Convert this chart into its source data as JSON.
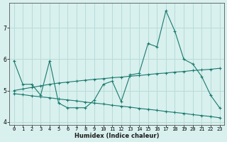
{
  "x": [
    0,
    1,
    2,
    3,
    4,
    5,
    6,
    7,
    8,
    9,
    10,
    11,
    12,
    13,
    14,
    15,
    16,
    17,
    18,
    19,
    20,
    21,
    22,
    23
  ],
  "line1": [
    5.95,
    5.2,
    5.2,
    4.85,
    5.95,
    4.6,
    4.45,
    4.45,
    4.45,
    4.7,
    5.2,
    5.3,
    4.65,
    5.5,
    5.55,
    6.5,
    6.4,
    7.55,
    6.9,
    6.0,
    5.85,
    5.45,
    4.85,
    4.45
  ],
  "line2_slope": [
    5.0,
    5.05,
    5.1,
    5.15,
    5.2,
    5.24,
    5.27,
    5.3,
    5.33,
    5.36,
    5.38,
    5.41,
    5.43,
    5.46,
    5.48,
    5.51,
    5.54,
    5.56,
    5.59,
    5.61,
    5.64,
    5.66,
    5.68,
    5.71
  ],
  "line3_slope": [
    4.9,
    4.87,
    4.83,
    4.8,
    4.77,
    4.73,
    4.7,
    4.67,
    4.63,
    4.6,
    4.57,
    4.53,
    4.5,
    4.47,
    4.43,
    4.4,
    4.37,
    4.33,
    4.3,
    4.27,
    4.23,
    4.2,
    4.17,
    4.13
  ],
  "color": "#1a7a6e",
  "bg_color": "#d8f0ee",
  "grid_color": "#b8dcd8",
  "xlabel": "Humidex (Indice chaleur)",
  "ylim": [
    3.9,
    7.8
  ],
  "xlim": [
    -0.5,
    23.5
  ],
  "yticks": [
    4,
    5,
    6,
    7
  ],
  "xticks": [
    0,
    1,
    2,
    3,
    4,
    5,
    6,
    7,
    8,
    9,
    10,
    11,
    12,
    13,
    14,
    15,
    16,
    17,
    18,
    19,
    20,
    21,
    22,
    23
  ],
  "xlabel_fontsize": 6.0,
  "tick_fontsize": 5.0,
  "ytick_fontsize": 5.5
}
